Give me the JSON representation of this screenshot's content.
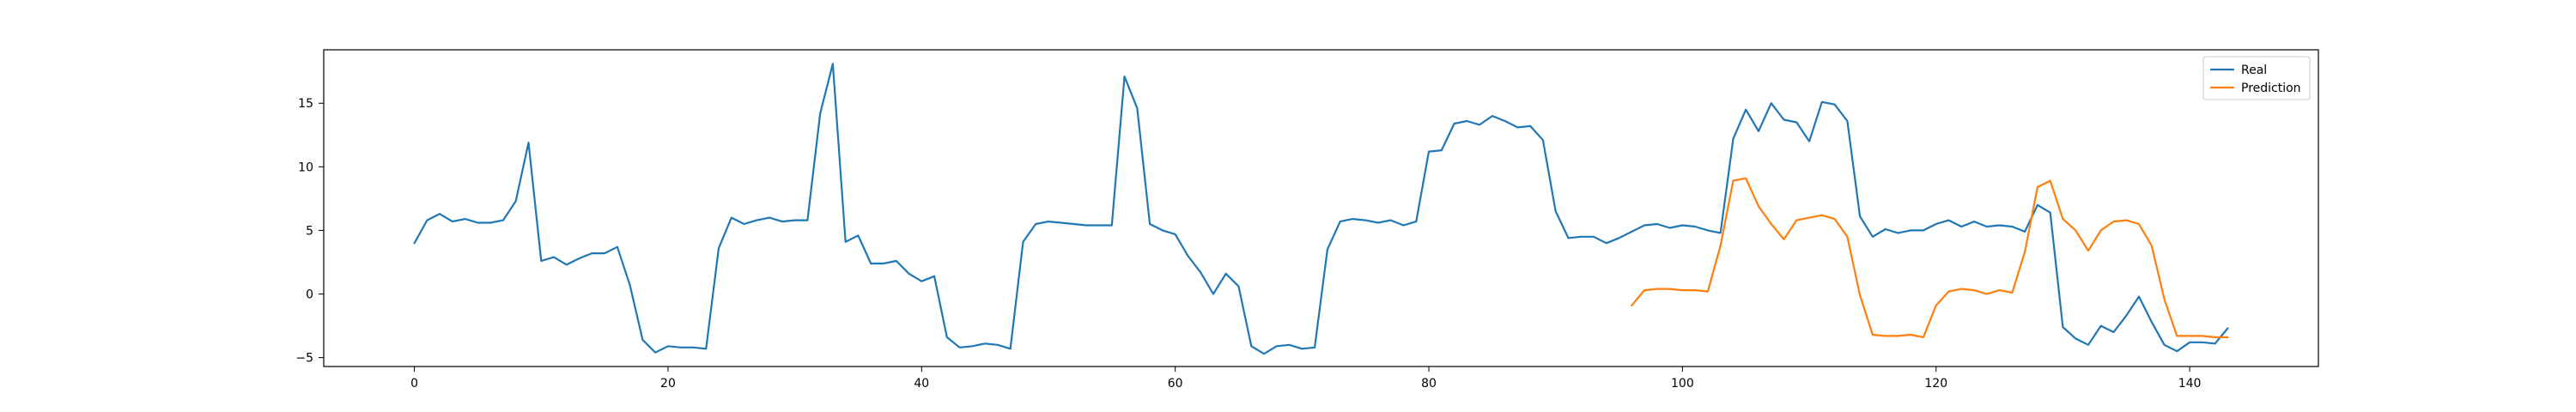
{
  "chart_data": {
    "type": "line",
    "title": "",
    "xlabel": "",
    "ylabel": "",
    "xlim": [
      -7.15,
      150.15
    ],
    "ylim": [
      -5.7,
      19.2
    ],
    "xticks": [
      0,
      20,
      40,
      60,
      80,
      100,
      120,
      140
    ],
    "yticks": [
      -5,
      0,
      5,
      10,
      15
    ],
    "grid": false,
    "legend": {
      "placement": "top-right"
    },
    "series": [
      {
        "name": "Real",
        "color": "#1f77b4",
        "x0": 0,
        "values": [
          4.0,
          5.8,
          6.3,
          5.7,
          5.9,
          5.6,
          5.6,
          5.8,
          7.3,
          11.9,
          2.6,
          2.9,
          2.3,
          2.8,
          3.2,
          3.2,
          3.7,
          0.7,
          -3.6,
          -4.6,
          -4.1,
          -4.2,
          -4.2,
          -4.3,
          3.6,
          6.0,
          5.5,
          5.8,
          6.0,
          5.7,
          5.8,
          5.8,
          14.2,
          18.1,
          4.1,
          4.6,
          2.4,
          2.4,
          2.6,
          1.6,
          1.0,
          1.4,
          -3.4,
          -4.2,
          -4.1,
          -3.9,
          -4.0,
          -4.3,
          4.1,
          5.5,
          5.7,
          5.6,
          5.5,
          5.4,
          5.4,
          5.4,
          17.1,
          14.6,
          5.5,
          5.0,
          4.7,
          3.0,
          1.7,
          0.0,
          1.6,
          0.6,
          -4.1,
          -4.7,
          -4.1,
          -4.0,
          -4.3,
          -4.2,
          3.5,
          5.7,
          5.9,
          5.8,
          5.6,
          5.8,
          5.4,
          5.7,
          11.2,
          11.3,
          13.4,
          13.6,
          13.3,
          14.0,
          13.6,
          13.1,
          13.2,
          12.1,
          6.5,
          4.4,
          4.5,
          4.5,
          4.0,
          4.4,
          4.9,
          5.4,
          5.5,
          5.2,
          5.4,
          5.3,
          5.0,
          4.8,
          12.2,
          14.5,
          12.8,
          15.0,
          13.7,
          13.5,
          12.0,
          15.1,
          14.9,
          13.6,
          6.1,
          4.5,
          5.1,
          4.8,
          5.0,
          5.0,
          5.5,
          5.8,
          5.3,
          5.7,
          5.3,
          5.4,
          5.3,
          4.9,
          7.0,
          6.4,
          -2.6,
          -3.5,
          -4.0,
          -2.5,
          -3.0,
          -1.7,
          -0.2,
          -2.2,
          -4.0,
          -4.5,
          -3.8,
          -3.8,
          -3.9,
          -2.7
        ]
      },
      {
        "name": "Prediction",
        "color": "#ff7f0e",
        "x0": 96,
        "values": [
          -0.9,
          0.3,
          0.4,
          0.4,
          0.3,
          0.3,
          0.2,
          3.8,
          8.9,
          9.1,
          6.9,
          5.5,
          4.3,
          5.8,
          6.0,
          6.2,
          5.9,
          4.5,
          -0.1,
          -3.2,
          -3.3,
          -3.3,
          -3.2,
          -3.4,
          -0.9,
          0.2,
          0.4,
          0.3,
          0.0,
          0.3,
          0.1,
          3.3,
          8.4,
          8.9,
          5.9,
          5.0,
          3.4,
          5.0,
          5.7,
          5.8,
          5.5,
          3.8,
          -0.4,
          -3.3,
          -3.3,
          -3.3,
          -3.4,
          -3.4
        ]
      }
    ]
  }
}
